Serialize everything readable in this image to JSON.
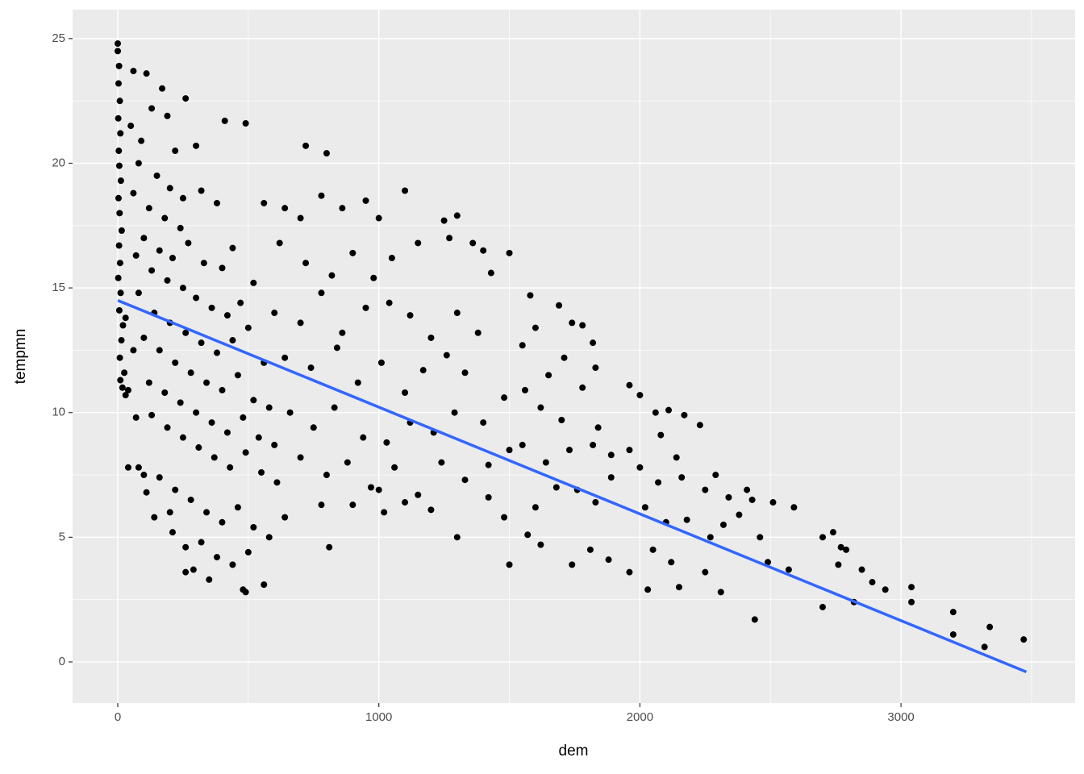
{
  "chart_data": {
    "type": "scatter",
    "x_label": "dem",
    "y_label": "tempmn",
    "xlim": [
      -173,
      3667
    ],
    "ylim": [
      -1.65,
      26.16
    ],
    "xticks": [
      0,
      1000,
      2000,
      3000
    ],
    "yticks": [
      0,
      5,
      10,
      15,
      20,
      25
    ],
    "grid": true,
    "background": "#EBEBEB",
    "series": [
      {
        "type": "scatter",
        "color": "#000000",
        "x": [
          0,
          0,
          5,
          3,
          8,
          2,
          10,
          4,
          6,
          12,
          3,
          7,
          15,
          5,
          9,
          2,
          11,
          6,
          20,
          14,
          8,
          25,
          18,
          30,
          10,
          40,
          60,
          110,
          170,
          260,
          130,
          190,
          50,
          90,
          220,
          300,
          410,
          490,
          80,
          150,
          200,
          250,
          320,
          380,
          60,
          120,
          180,
          240,
          100,
          160,
          210,
          270,
          330,
          400,
          440,
          70,
          130,
          190,
          250,
          300,
          360,
          420,
          470,
          520,
          80,
          140,
          200,
          260,
          320,
          380,
          440,
          500,
          560,
          100,
          160,
          220,
          280,
          340,
          400,
          460,
          520,
          580,
          120,
          180,
          240,
          300,
          360,
          420,
          480,
          540,
          600,
          130,
          190,
          250,
          310,
          370,
          430,
          490,
          550,
          610,
          80,
          110,
          160,
          220,
          280,
          340,
          400,
          460,
          520,
          580,
          640,
          200,
          210,
          260,
          320,
          380,
          440,
          500,
          290,
          350,
          480,
          490,
          560,
          260,
          140,
          100,
          60,
          30,
          70,
          40,
          560,
          640,
          720,
          800,
          700,
          780,
          860,
          950,
          1000,
          1100,
          620,
          720,
          820,
          900,
          980,
          1050,
          1150,
          1250,
          1300,
          1360,
          1400,
          1500,
          1430,
          1270,
          600,
          700,
          780,
          860,
          950,
          1040,
          1120,
          1200,
          1300,
          1380,
          640,
          740,
          840,
          920,
          1010,
          1100,
          1170,
          1260,
          1330,
          660,
          750,
          830,
          940,
          1030,
          1120,
          1210,
          1290,
          1400,
          1480,
          700,
          800,
          880,
          970,
          1060,
          1150,
          1240,
          1330,
          1420,
          1500,
          1580,
          1600,
          1690,
          1740,
          1780,
          1820,
          1830,
          1550,
          1650,
          1710,
          1560,
          1620,
          1700,
          1780,
          1840,
          1550,
          1640,
          1730,
          1820,
          1890,
          1600,
          1680,
          1760,
          1830,
          1890,
          1480,
          1570,
          1620,
          1500,
          1740,
          1810,
          1880,
          1960,
          2030,
          780,
          810,
          900,
          1020,
          1200,
          1300,
          1420,
          1000,
          1100,
          1960,
          2000,
          2060,
          2110,
          2170,
          2080,
          2140,
          2230,
          1960,
          2000,
          2070,
          2160,
          2250,
          2290,
          2340,
          2020,
          2100,
          2180,
          2270,
          2320,
          2410,
          2430,
          2510,
          2590,
          2490,
          2570,
          2380,
          2460,
          2050,
          2120,
          2150,
          2250,
          2310,
          2440,
          2700,
          2740,
          2770,
          2790,
          2760,
          2850,
          2890,
          2940,
          2700,
          2820,
          3040,
          3040,
          3200,
          3200,
          3340,
          3320,
          3470
        ],
        "values": [
          24.8,
          24.5,
          23.9,
          23.2,
          22.5,
          21.8,
          21.2,
          20.5,
          19.9,
          19.3,
          18.6,
          18.0,
          17.3,
          16.7,
          16.0,
          15.4,
          14.8,
          14.1,
          13.5,
          12.9,
          12.2,
          11.6,
          11.0,
          10.7,
          11.3,
          10.9,
          23.7,
          23.6,
          23.0,
          22.6,
          22.2,
          21.9,
          21.5,
          20.9,
          20.5,
          20.7,
          21.7,
          21.6,
          20.0,
          19.5,
          19.0,
          18.6,
          18.9,
          18.4,
          18.8,
          18.2,
          17.8,
          17.4,
          17.0,
          16.5,
          16.2,
          16.8,
          16.0,
          15.8,
          16.6,
          16.3,
          15.7,
          15.3,
          15.0,
          14.6,
          14.2,
          13.9,
          14.4,
          15.2,
          14.8,
          14.0,
          13.6,
          13.2,
          12.8,
          12.4,
          12.9,
          13.4,
          12.0,
          13.0,
          12.5,
          12.0,
          11.6,
          11.2,
          10.9,
          11.5,
          10.5,
          10.2,
          11.2,
          10.8,
          10.4,
          10.0,
          9.6,
          9.2,
          9.8,
          9.0,
          8.7,
          9.9,
          9.4,
          9.0,
          8.6,
          8.2,
          7.8,
          8.4,
          7.6,
          7.2,
          7.8,
          6.8,
          7.4,
          6.9,
          6.5,
          6.0,
          5.6,
          6.2,
          5.4,
          5.0,
          5.8,
          6.0,
          5.2,
          4.6,
          4.8,
          4.2,
          3.9,
          4.4,
          3.7,
          3.3,
          2.9,
          2.8,
          3.1,
          3.6,
          5.8,
          7.5,
          12.5,
          13.8,
          9.8,
          7.8,
          18.4,
          18.2,
          20.7,
          20.4,
          17.8,
          18.7,
          18.2,
          18.5,
          17.8,
          18.9,
          16.8,
          16.0,
          15.5,
          16.4,
          15.4,
          16.2,
          16.8,
          17.7,
          17.9,
          16.8,
          16.5,
          16.4,
          15.6,
          17.0,
          14.0,
          13.6,
          14.8,
          13.2,
          14.2,
          14.4,
          13.9,
          13.0,
          14.0,
          13.2,
          12.2,
          11.8,
          12.6,
          11.2,
          12.0,
          10.8,
          11.7,
          12.3,
          11.6,
          10.0,
          9.4,
          10.2,
          9.0,
          8.8,
          9.6,
          9.2,
          10.0,
          9.6,
          10.6,
          8.2,
          7.5,
          8.0,
          7.0,
          7.8,
          6.7,
          8.0,
          7.3,
          7.9,
          8.5,
          14.7,
          13.4,
          14.3,
          13.6,
          13.5,
          12.8,
          11.8,
          12.7,
          11.5,
          12.2,
          10.9,
          10.2,
          9.7,
          11.0,
          9.4,
          8.7,
          8.0,
          8.5,
          8.7,
          8.3,
          6.2,
          7.0,
          6.9,
          6.4,
          7.4,
          5.8,
          5.1,
          4.7,
          3.9,
          3.9,
          4.5,
          4.1,
          3.6,
          2.9,
          6.3,
          4.6,
          6.3,
          6.0,
          6.1,
          5.0,
          6.6,
          6.9,
          6.4,
          11.1,
          10.7,
          10.0,
          10.1,
          9.9,
          9.1,
          8.2,
          9.5,
          8.5,
          7.8,
          7.2,
          7.4,
          6.9,
          7.5,
          6.6,
          6.2,
          5.6,
          5.7,
          5.0,
          5.5,
          6.9,
          6.5,
          6.4,
          6.2,
          4.0,
          3.7,
          5.9,
          5.0,
          4.5,
          4.0,
          3.0,
          3.6,
          2.8,
          1.7,
          5.0,
          5.2,
          4.6,
          4.5,
          3.9,
          3.7,
          3.2,
          2.9,
          2.2,
          2.4,
          3.0,
          2.4,
          2.0,
          1.1,
          1.4,
          0.6,
          0.9
        ]
      },
      {
        "type": "line",
        "color": "#3366FF",
        "x": [
          0,
          3480
        ],
        "values": [
          14.5,
          -0.4
        ]
      }
    ]
  }
}
